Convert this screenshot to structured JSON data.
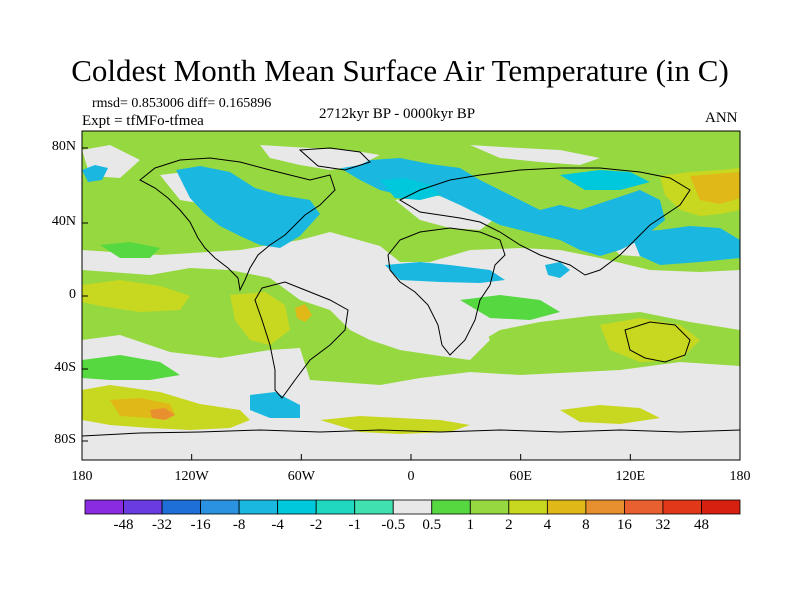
{
  "title": "Coldest Month Mean Surface Air Temperature (in C)",
  "stats_line": "rmsd= 0.853006 diff= 0.165896",
  "expt_line": "Expt = tfMFo-tfmea",
  "period": "2712kyr BP - 0000kyr BP",
  "season": "ANN",
  "map": {
    "lat_labels": [
      "80N",
      "40N",
      "0",
      "40S",
      "80S"
    ],
    "lon_labels": [
      "180",
      "120W",
      "60W",
      "0",
      "60E",
      "120E",
      "180"
    ]
  },
  "colorbar": {
    "labels": [
      "-48",
      "-32",
      "-16",
      "-8",
      "-4",
      "-2",
      "-1",
      "-0.5",
      "0.5",
      "1",
      "2",
      "4",
      "8",
      "16",
      "32",
      "48"
    ],
    "colors": [
      "#8a2be2",
      "#6a3be0",
      "#1e6fd8",
      "#2a92e0",
      "#1ab8e0",
      "#00c8dc",
      "#20d8c0",
      "#40e0b0",
      "#e8e8e8",
      "#55d840",
      "#96d840",
      "#c8d820",
      "#e0b818",
      "#e89030",
      "#e86030",
      "#e03818",
      "#d82010"
    ]
  }
}
